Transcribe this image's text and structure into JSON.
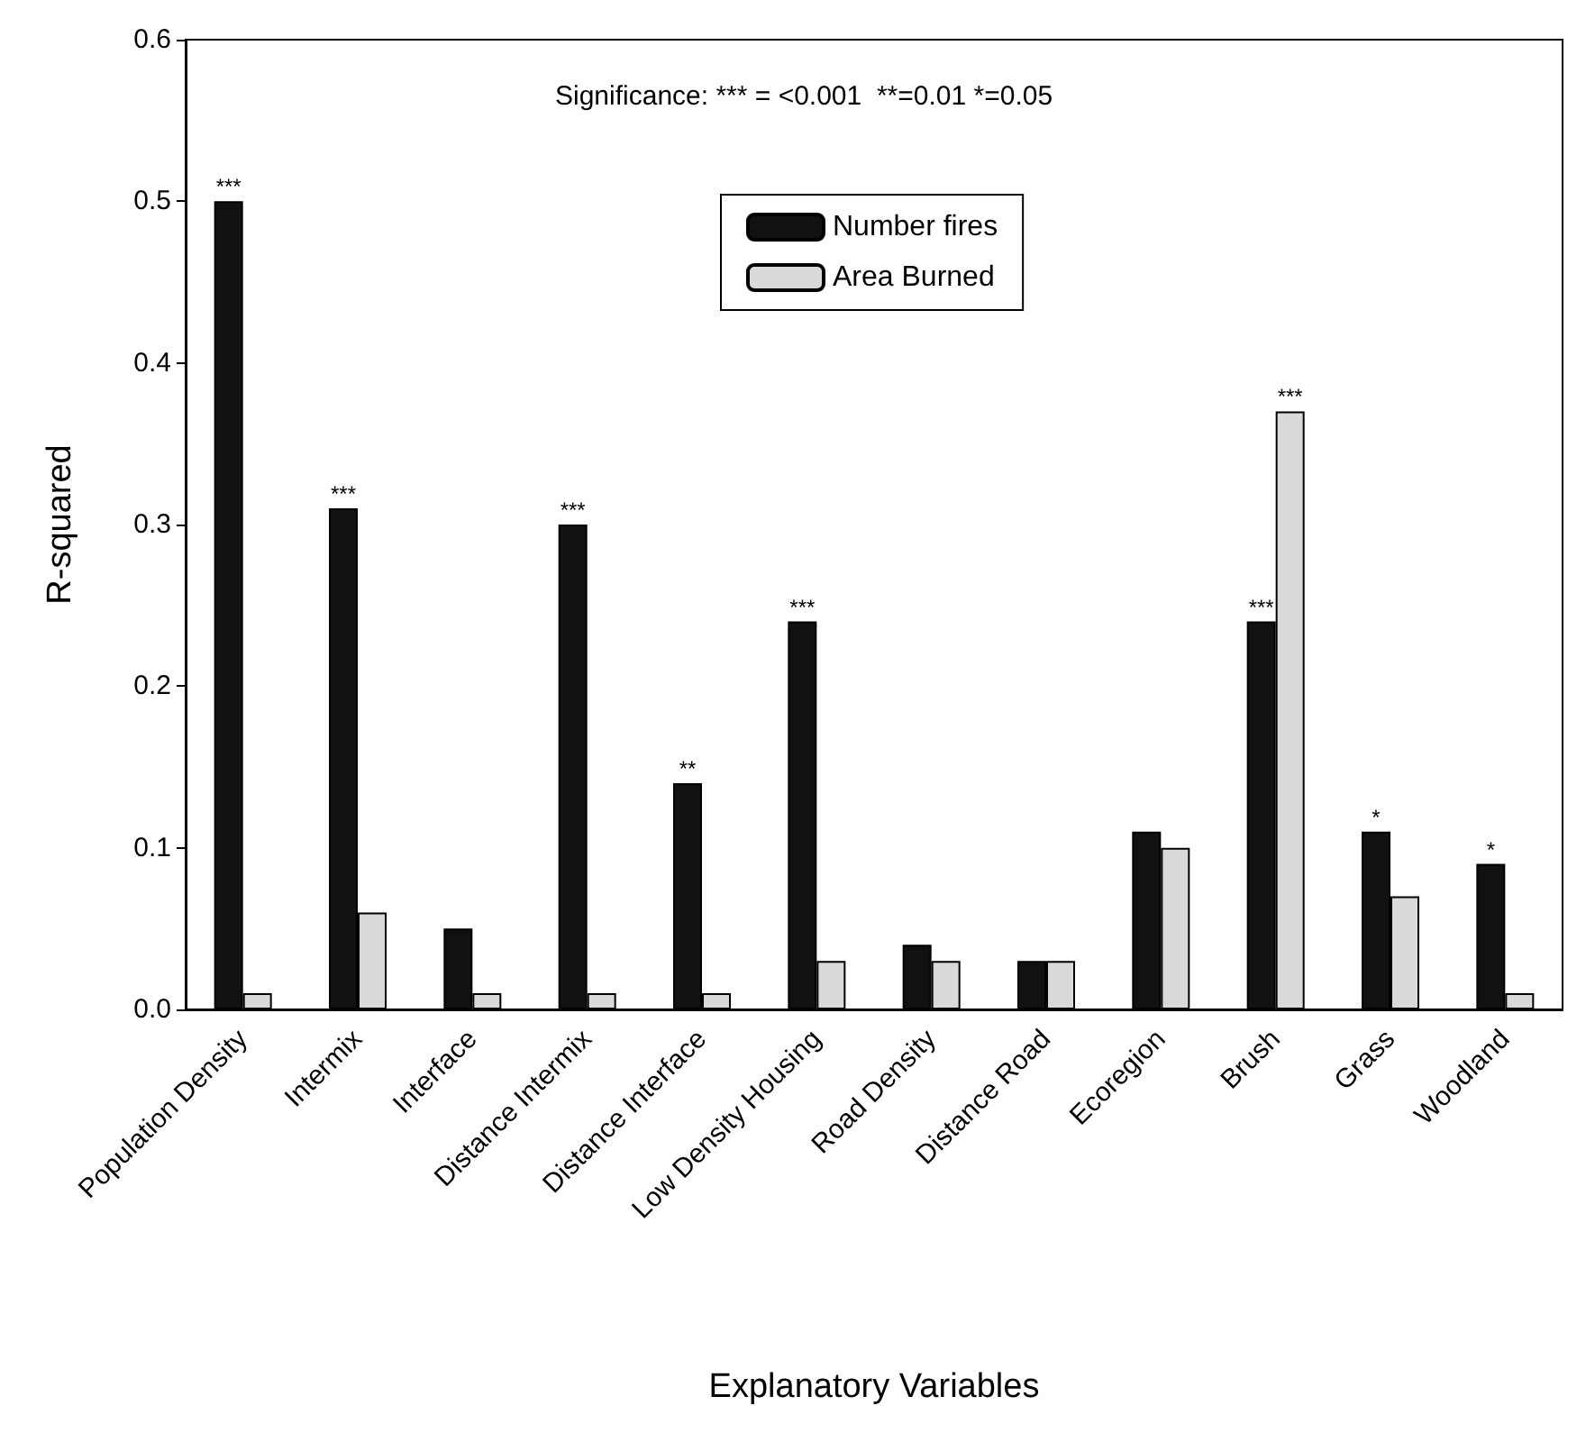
{
  "chart_data": {
    "type": "bar",
    "xlabel": "Explanatory Variables",
    "ylabel": "R-squared",
    "categories": [
      "Population Density",
      "Intermix",
      "Interface",
      "Distance Intermix",
      "Distance Interface",
      "Low Density Housing",
      "Road Density",
      "Distance Road",
      "Ecoregion",
      "Brush",
      "Grass",
      "Woodland"
    ],
    "series": [
      {
        "name": "Number fires",
        "color": "#111111",
        "values": [
          0.5,
          0.31,
          0.05,
          0.3,
          0.14,
          0.24,
          0.04,
          0.03,
          0.11,
          0.24,
          0.11,
          0.09
        ]
      },
      {
        "name": "Area Burned",
        "color": "#d9d9d9",
        "values": [
          0.01,
          0.06,
          0.01,
          0.01,
          0.01,
          0.03,
          0.03,
          0.03,
          0.1,
          0.37,
          0.07,
          0.01
        ]
      }
    ],
    "ylim": [
      0,
      0.6
    ],
    "yticks": [
      {
        "value": 0,
        "label": "0.0"
      },
      {
        "value": 0.1,
        "label": "0.1"
      },
      {
        "value": 0.2,
        "label": "0.2"
      },
      {
        "value": 0.3,
        "label": "0.3"
      },
      {
        "value": 0.4,
        "label": "0.4"
      },
      {
        "value": 0.5,
        "label": "0.5"
      },
      {
        "value": 0.6,
        "label": "0.6"
      }
    ],
    "grid": false,
    "legend": "top",
    "annotations": [
      "Significance: *** = <0.001  **=0.01 *=0.05",
      {
        "text": "***",
        "x": "Population Density",
        "y": 0.5
      },
      {
        "text": "***",
        "x": "Intermix",
        "y": 0.31
      },
      {
        "text": "***",
        "x": "Distance Intermix",
        "y": 0.3
      },
      {
        "text": "**",
        "x": "Distance Interface",
        "y": 0.14
      },
      {
        "text": "***",
        "x": "Low Density Housing",
        "y": 0.24
      },
      {
        "text": "***",
        "x": "Brush",
        "y": 0.24
      },
      {
        "text": "***",
        "x": "Brush",
        "y": 0.37
      },
      {
        "text": "*",
        "x": "Grass",
        "y": 0.11
      },
      {
        "text": "*",
        "x": "Woodland",
        "y": 0.09
      }
    ]
  }
}
